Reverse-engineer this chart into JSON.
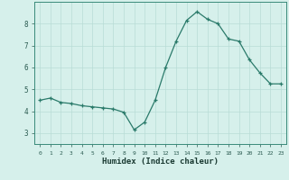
{
  "x": [
    0,
    1,
    2,
    3,
    4,
    5,
    6,
    7,
    8,
    9,
    10,
    11,
    12,
    13,
    14,
    15,
    16,
    17,
    18,
    19,
    20,
    21,
    22,
    23
  ],
  "y": [
    4.5,
    4.6,
    4.4,
    4.35,
    4.25,
    4.2,
    4.15,
    4.1,
    3.95,
    3.15,
    3.5,
    4.5,
    6.0,
    7.2,
    8.15,
    8.55,
    8.2,
    8.0,
    7.3,
    7.2,
    6.35,
    5.75,
    5.25,
    5.25
  ],
  "ylim": [
    2.5,
    9.0
  ],
  "xlim": [
    -0.5,
    23.5
  ],
  "yticks": [
    3,
    4,
    5,
    6,
    7,
    8
  ],
  "xticks": [
    0,
    1,
    2,
    3,
    4,
    5,
    6,
    7,
    8,
    9,
    10,
    11,
    12,
    13,
    14,
    15,
    16,
    17,
    18,
    19,
    20,
    21,
    22,
    23
  ],
  "xlabel": "Humidex (Indice chaleur)",
  "line_color": "#2a7a6a",
  "marker": "+",
  "marker_color": "#2a7a6a",
  "bg_color": "#d6f0eb",
  "grid_color": "#b8dcd6",
  "axis_color": "#3a8a7a",
  "tick_color": "#2a5a50",
  "xlabel_color": "#1a3a32"
}
